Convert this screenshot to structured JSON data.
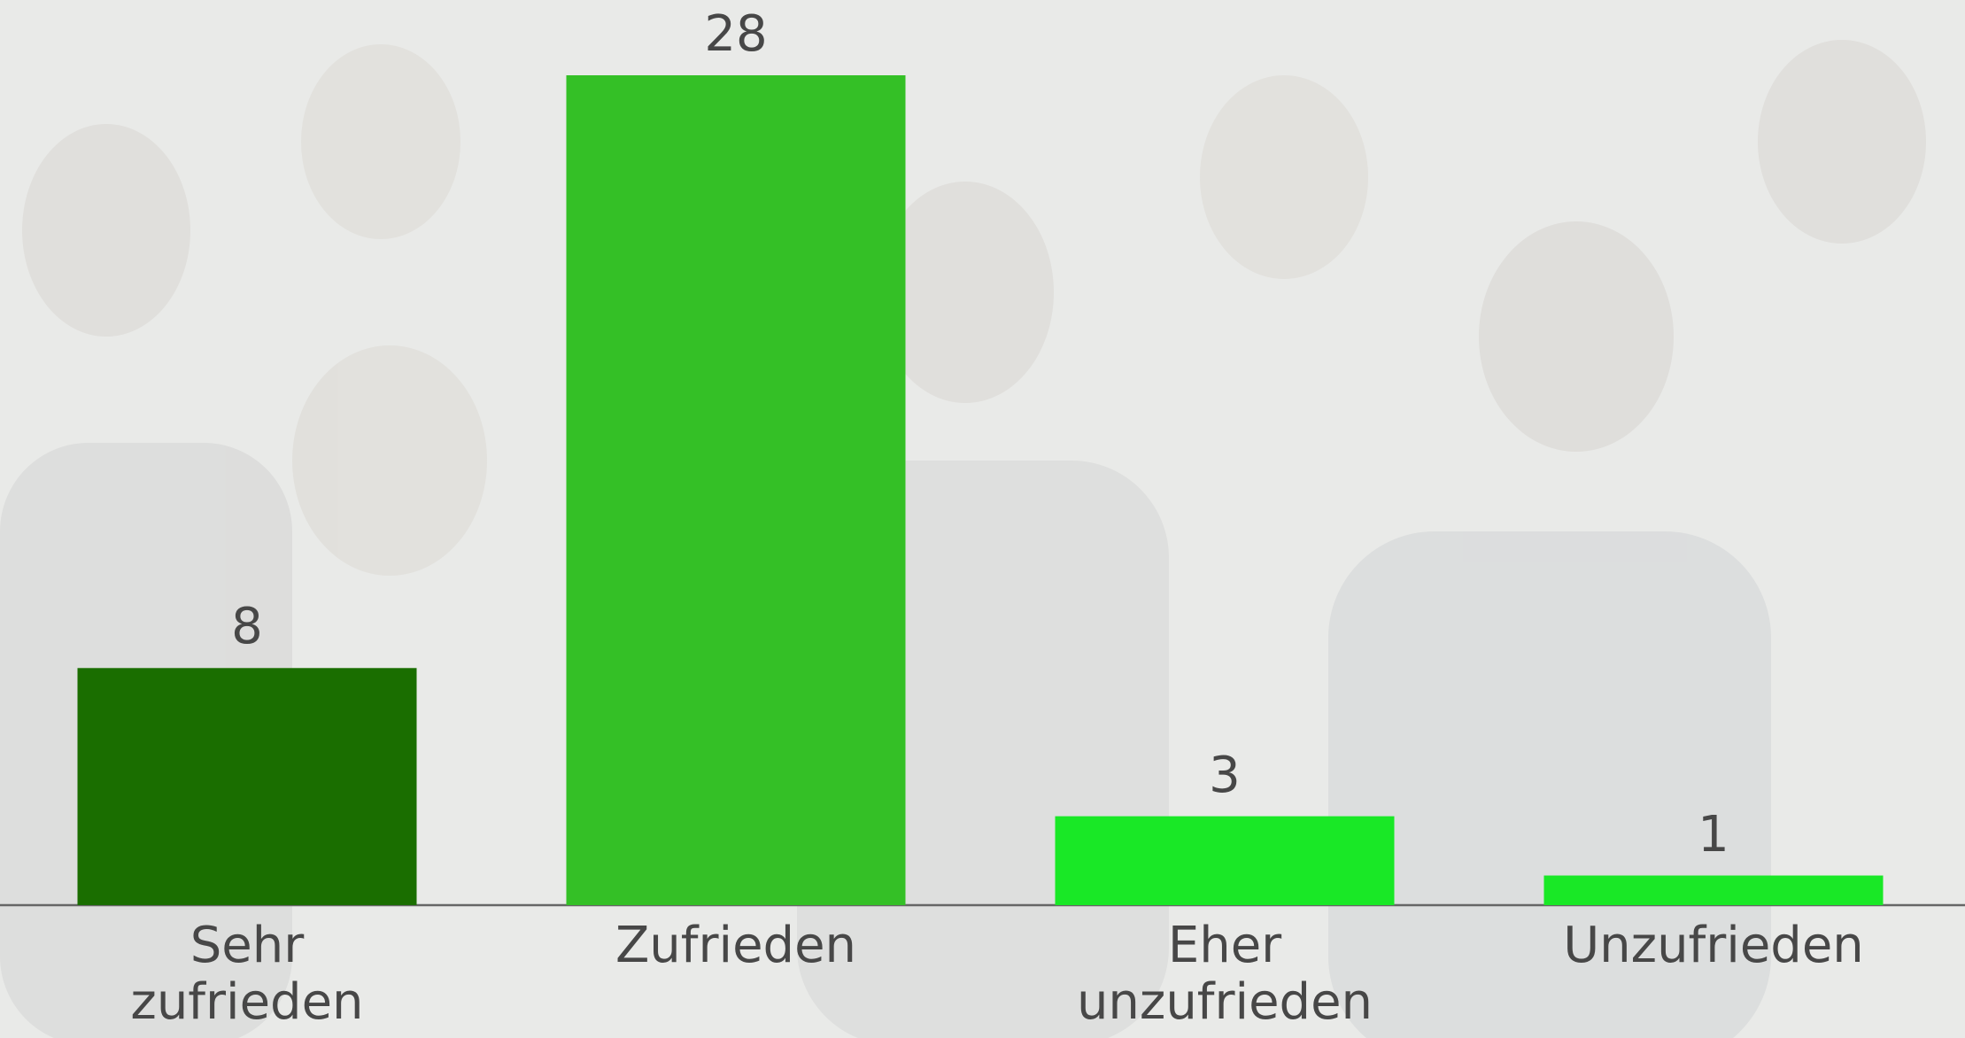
{
  "chart_data": {
    "type": "bar",
    "categories": [
      "Sehr zufrieden",
      "Zufrieden",
      "Eher unzufrieden",
      "Unzufrieden"
    ],
    "series": [
      {
        "values": [
          8,
          28,
          3,
          1
        ],
        "colors": [
          "#1a6e00",
          "#34c026",
          "#19e826",
          "#19e826"
        ]
      }
    ]
  }
}
